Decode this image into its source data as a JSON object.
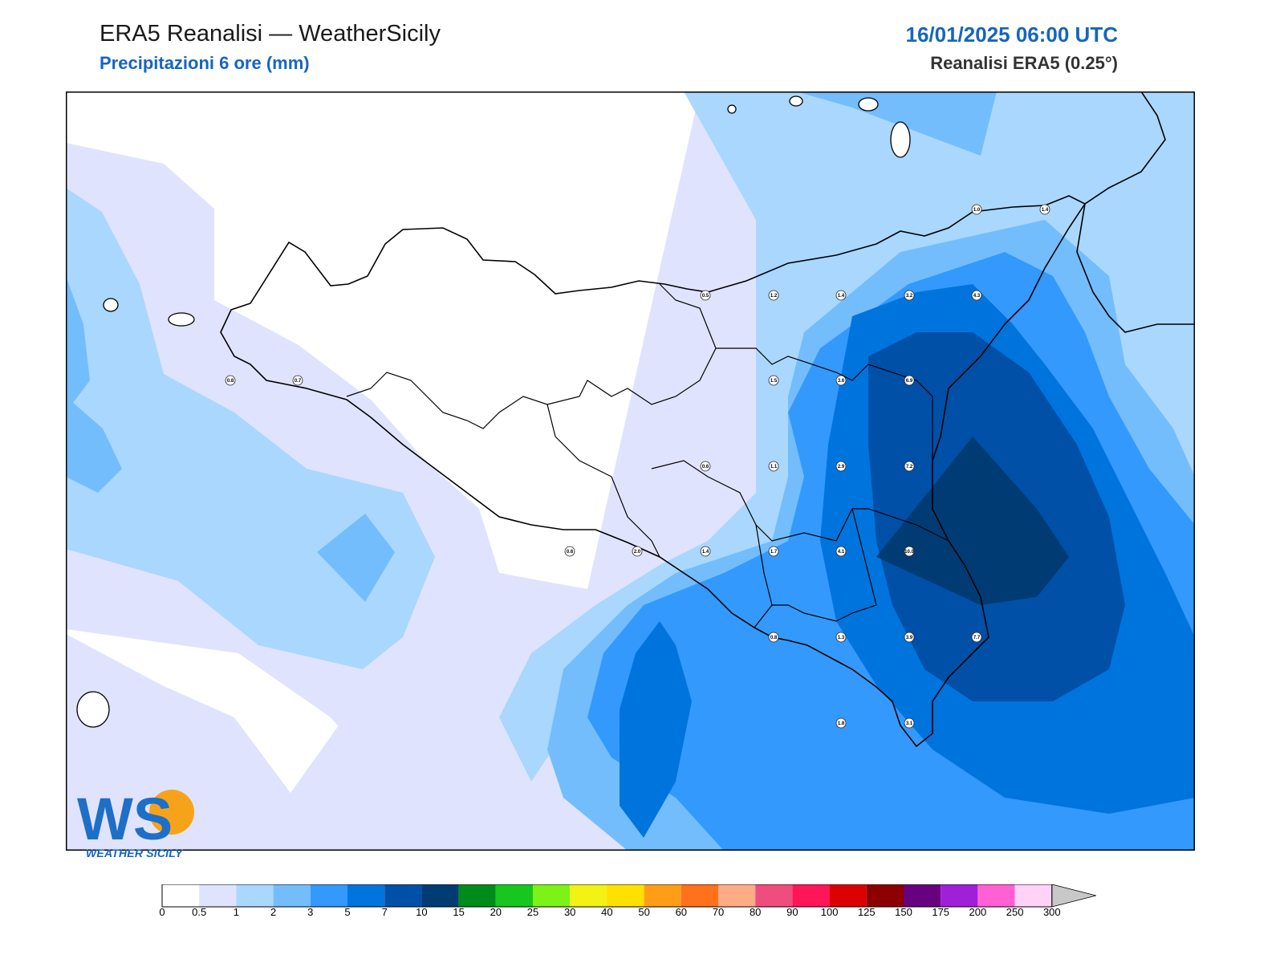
{
  "header": {
    "title": "ERA5 Reanalisi — WeatherSicily",
    "subtitle": "Precipitazioni 6 ore (mm)",
    "datetime": "16/01/2025 06:00 UTC",
    "model": "Reanalisi ERA5 (0.25°)"
  },
  "logo": {
    "initials": "WS",
    "text": "WEATHER SICILY"
  },
  "colorbar": {
    "ticks": [
      "0",
      "0.5",
      "1",
      "2",
      "3",
      "5",
      "7",
      "10",
      "15",
      "20",
      "25",
      "30",
      "40",
      "50",
      "60",
      "70",
      "80",
      "90",
      "100",
      "125",
      "150",
      "175",
      "200",
      "250",
      "300"
    ],
    "colors": [
      "#ffffff",
      "#e0e3fd",
      "#aad7fd",
      "#73bdfd",
      "#3399fd",
      "#0074dd",
      "#0050a8",
      "#003b74",
      "#008c1a",
      "#17c61f",
      "#7df216",
      "#f2f214",
      "#ffe000",
      "#ff9e16",
      "#ff711a",
      "#ffac86",
      "#f04d7f",
      "#ff1658",
      "#dc0000",
      "#8c0000",
      "#680080",
      "#a020d8",
      "#ff60d4",
      "#ffd2f6"
    ]
  },
  "chart_data": {
    "type": "map",
    "variable": "Precipitazioni 6 ore (mm)",
    "values": [
      {
        "label": "0.8",
        "value": 0.8
      },
      {
        "label": "0.7",
        "value": 0.7
      },
      {
        "label": "0.5",
        "value": 0.5
      },
      {
        "label": "1.2",
        "value": 1.2
      },
      {
        "label": "1.4",
        "value": 1.4
      },
      {
        "label": "3.2",
        "value": 3.2
      },
      {
        "label": "4.3",
        "value": 4.3
      },
      {
        "label": "1.0",
        "value": 1.0
      },
      {
        "label": "1.4",
        "value": 1.4
      },
      {
        "label": "1.5",
        "value": 1.5
      },
      {
        "label": "3.6",
        "value": 3.6
      },
      {
        "label": "6.9",
        "value": 6.9
      },
      {
        "label": "0.6",
        "value": 0.6
      },
      {
        "label": "1.1",
        "value": 1.1
      },
      {
        "label": "2.9",
        "value": 2.9
      },
      {
        "label": "7.2",
        "value": 7.2
      },
      {
        "label": "0.6",
        "value": 0.6
      },
      {
        "label": "2.0",
        "value": 2.0
      },
      {
        "label": "1.4",
        "value": 1.4
      },
      {
        "label": "1.7",
        "value": 1.7
      },
      {
        "label": "4.1",
        "value": 4.1
      },
      {
        "label": "10.0",
        "value": 10.0
      },
      {
        "label": "0.8",
        "value": 0.8
      },
      {
        "label": "1.3",
        "value": 1.3
      },
      {
        "label": "3.9",
        "value": 3.9
      },
      {
        "label": "7.7",
        "value": 7.7
      },
      {
        "label": "1.8",
        "value": 1.8
      },
      {
        "label": "3.1",
        "value": 3.1
      }
    ]
  }
}
